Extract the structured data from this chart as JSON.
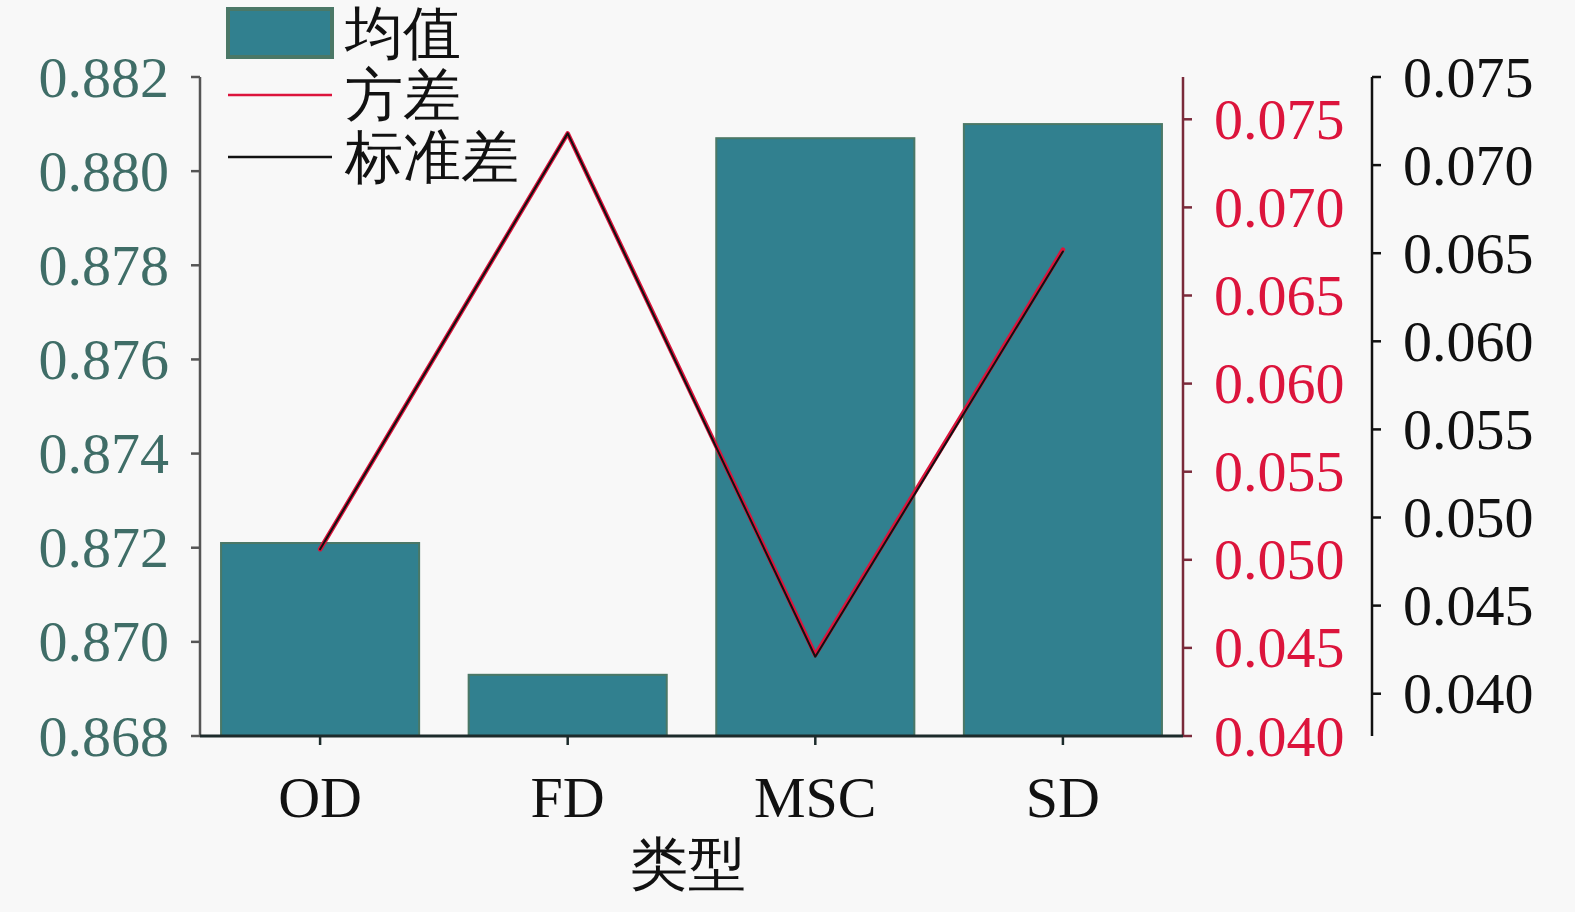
{
  "chart_data": {
    "type": "bar",
    "xlabel": "类型",
    "categories": [
      "OD",
      "FD",
      "MSC",
      "SD"
    ],
    "series": [
      {
        "name": "均值",
        "color": "#31808f",
        "values": [
          0.8721,
          0.8693,
          0.8807,
          0.881
        ]
      },
      {
        "name": "方差",
        "type": "line",
        "axis": "y2",
        "color": "#dc143c",
        "values": [
          0.0506,
          0.0742,
          0.0446,
          0.0676
        ]
      },
      {
        "name": "标准差",
        "type": "line",
        "axis": "y3",
        "color": "#111111",
        "values": [
          0.0482,
          0.0718,
          0.0421,
          0.0651
        ]
      }
    ],
    "ylim": [
      0.868,
      0.882
    ],
    "yticks": [
      0.868,
      {
        "value": 0.87,
        "label": "0.870"
      },
      0.872,
      0.874,
      0.876,
      0.878,
      {
        "value": 0.88,
        "label": "0.880"
      },
      0.882
    ],
    "y2lim": [
      0.04,
      0.0774
    ],
    "y2ticks": [
      {
        "value": 0.04,
        "label": "0.040"
      },
      0.045,
      {
        "value": 0.05,
        "label": "0.050"
      },
      0.055,
      {
        "value": 0.06,
        "label": "0.060"
      },
      0.065,
      {
        "value": 0.07,
        "label": "0.070"
      },
      0.075
    ],
    "y3lim": [
      0.0376,
      0.075
    ],
    "y3ticks": [
      {
        "value": 0.04,
        "label": "0.040"
      },
      0.045,
      {
        "value": 0.05,
        "label": "0.050"
      },
      0.055,
      {
        "value": 0.06,
        "label": "0.060"
      },
      0.065,
      {
        "value": 0.07,
        "label": "0.070"
      },
      0.075
    ],
    "legend": "top left"
  }
}
